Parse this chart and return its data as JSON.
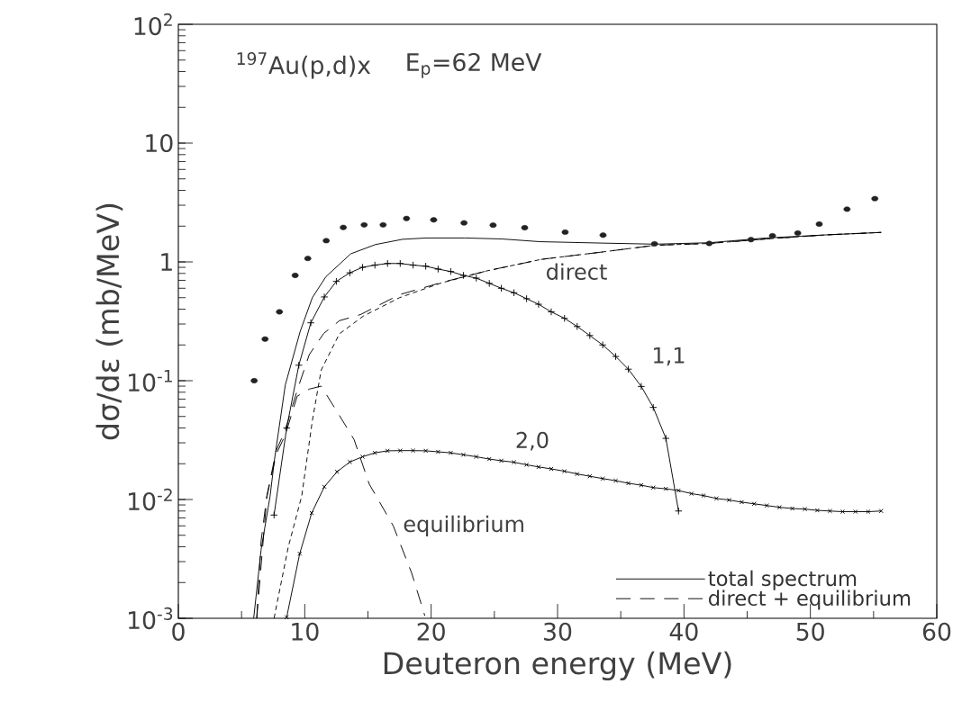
{
  "chart_data": {
    "type": "line",
    "xlabel": "Deuteron energy (MeV)",
    "ylabel": "dσ/dε (mb/MeV)",
    "log": "y",
    "legend": "bottom right",
    "annotations": [
      "$^{197}$Au(p,d)x",
      "E$_{p}$=62 MeV"
    ],
    "xlim": [
      0,
      60
    ],
    "xticks": [
      0,
      10,
      20,
      30,
      40,
      50,
      60
    ],
    "ylim": [
      0.001,
      100
    ],
    "yticks": [
      {
        "value": 0.001,
        "label": "10$^{-3}$"
      },
      {
        "value": 0.01,
        "label": "10$^{-2}$"
      },
      {
        "value": 0.1,
        "label": "10$^{-1}$"
      },
      1,
      10,
      {
        "value": 100,
        "label": "10$^{2}$"
      }
    ],
    "series": [
      {
        "name": "total spectrum",
        "color": "#000000",
        "line_style": "solid",
        "marker": "none",
        "x": [
          5.96,
          6.55,
          7.26,
          7.6,
          8.46,
          9.64,
          10.6,
          11.67,
          13.64,
          15.6,
          17.74,
          19.6,
          22.7,
          25.6,
          28.6,
          33.5,
          37.7,
          42.0,
          46.5,
          51.3,
          55.6
        ],
        "values": [
          0.001,
          0.0038,
          0.0107,
          0.0215,
          0.092,
          0.26,
          0.5,
          0.75,
          1.17,
          1.4,
          1.55,
          1.59,
          1.59,
          1.56,
          1.48,
          1.44,
          1.41,
          1.45,
          1.59,
          1.69,
          1.77
        ]
      },
      {
        "name": "direct + equilibrium",
        "color": "#000000",
        "line_style": "dashed",
        "marker": "none",
        "x": [
          6.2,
          6.55,
          7.0,
          7.74,
          8.46,
          9.4,
          10.36,
          11.5,
          12.74,
          14.4,
          17.5,
          20.8,
          24.4,
          28.7,
          33.5,
          37.7,
          42.0,
          46.5,
          51.3,
          55.6
        ],
        "values": [
          0.001,
          0.0045,
          0.0107,
          0.0257,
          0.0385,
          0.083,
          0.166,
          0.25,
          0.32,
          0.36,
          0.53,
          0.67,
          0.84,
          1.05,
          1.21,
          1.38,
          1.43,
          1.56,
          1.69,
          1.77
        ]
      },
      {
        "name": "direct",
        "color": "#000000",
        "line_style": "dotted",
        "marker": "none",
        "x": [
          7.57,
          8.7,
          9.76,
          10.6,
          11.3,
          12.74,
          14.64,
          17.5,
          20.8,
          24.4,
          28.7,
          33.5,
          37.7,
          42.0,
          46.5,
          51.3,
          55.6
        ],
        "values": [
          0.001,
          0.004,
          0.0107,
          0.046,
          0.123,
          0.248,
          0.35,
          0.5,
          0.665,
          0.84,
          1.05,
          1.21,
          1.38,
          1.43,
          1.56,
          1.69,
          1.77
        ]
      },
      {
        "name": "equilibrium",
        "color": "#000000",
        "line_style": "dashed",
        "marker": "none",
        "x": [
          6.2,
          7.0,
          7.74,
          8.46,
          9.4,
          10.36,
          11.3,
          12.74,
          13.9,
          15.1,
          17.0,
          18.46,
          19.5
        ],
        "values": [
          0.001,
          0.0105,
          0.024,
          0.035,
          0.074,
          0.085,
          0.09,
          0.051,
          0.032,
          0.0135,
          0.006,
          0.0024,
          0.00105
        ]
      },
      {
        "name": "1,1",
        "color": "#000000",
        "line_style": "solid",
        "marker": "plus",
        "x": [
          7.57,
          8.57,
          9.53,
          10.48,
          11.55,
          12.5,
          13.57,
          14.57,
          15.55,
          16.55,
          17.55,
          18.57,
          19.57,
          20.55,
          21.55,
          22.55,
          23.57,
          24.6,
          25.55,
          26.55,
          27.55,
          28.5,
          29.5,
          30.55,
          31.55,
          32.55,
          33.57,
          34.6,
          35.6,
          36.62,
          37.57,
          38.57,
          39.57
        ],
        "values": [
          0.0074,
          0.04,
          0.135,
          0.307,
          0.507,
          0.685,
          0.81,
          0.9,
          0.94,
          0.97,
          0.97,
          0.94,
          0.92,
          0.87,
          0.83,
          0.77,
          0.73,
          0.66,
          0.6,
          0.55,
          0.49,
          0.44,
          0.38,
          0.335,
          0.286,
          0.24,
          0.2,
          0.16,
          0.125,
          0.0895,
          0.0596,
          0.0327,
          0.008
        ]
      },
      {
        "name": "2,0",
        "color": "#000000",
        "line_style": "solid",
        "marker": "cross",
        "x": [
          8.57,
          9.6,
          10.55,
          11.55,
          12.55,
          13.57,
          14.57,
          15.55,
          16.55,
          17.55,
          18.57,
          19.57,
          20.55,
          21.55,
          22.55,
          23.57,
          24.6,
          25.55,
          26.55,
          27.55,
          28.5,
          29.5,
          30.55,
          31.55,
          32.55,
          33.57,
          34.6,
          35.6,
          36.62,
          37.57,
          38.57,
          39.57,
          40.6,
          41.55,
          42.57,
          43.57,
          44.57,
          45.55,
          46.55,
          47.55,
          48.57,
          49.57,
          50.55,
          51.55,
          52.55,
          53.57,
          54.57,
          55.6
        ],
        "values": [
          0.00102,
          0.0035,
          0.0077,
          0.0128,
          0.0171,
          0.0207,
          0.0229,
          0.0247,
          0.0257,
          0.0258,
          0.0258,
          0.0257,
          0.0252,
          0.0247,
          0.0238,
          0.0229,
          0.0219,
          0.0212,
          0.0206,
          0.0196,
          0.0188,
          0.0181,
          0.0173,
          0.0164,
          0.0157,
          0.015,
          0.0144,
          0.0137,
          0.0132,
          0.0126,
          0.0123,
          0.0119,
          0.0112,
          0.0108,
          0.0102,
          0.0099,
          0.0095,
          0.0092,
          0.0089,
          0.0086,
          0.0084,
          0.0083,
          0.0081,
          0.008,
          0.0079,
          0.0079,
          0.0079,
          0.008
        ]
      },
      {
        "type": "scatter",
        "color": "#222222",
        "marker": "circle",
        "x": [
          6.0,
          6.86,
          8.0,
          9.24,
          10.24,
          11.7,
          13.05,
          14.7,
          16.2,
          18.05,
          20.2,
          22.6,
          24.9,
          27.4,
          30.6,
          33.6,
          37.67,
          42.0,
          45.3,
          47.0,
          49.0,
          50.7,
          52.9,
          55.1
        ],
        "values": [
          0.1,
          0.224,
          0.38,
          0.77,
          1.07,
          1.51,
          1.95,
          2.05,
          2.05,
          2.32,
          2.26,
          2.13,
          2.04,
          1.94,
          1.78,
          1.68,
          1.42,
          1.43,
          1.54,
          1.66,
          1.75,
          2.08,
          2.78,
          3.41
        ]
      }
    ]
  }
}
